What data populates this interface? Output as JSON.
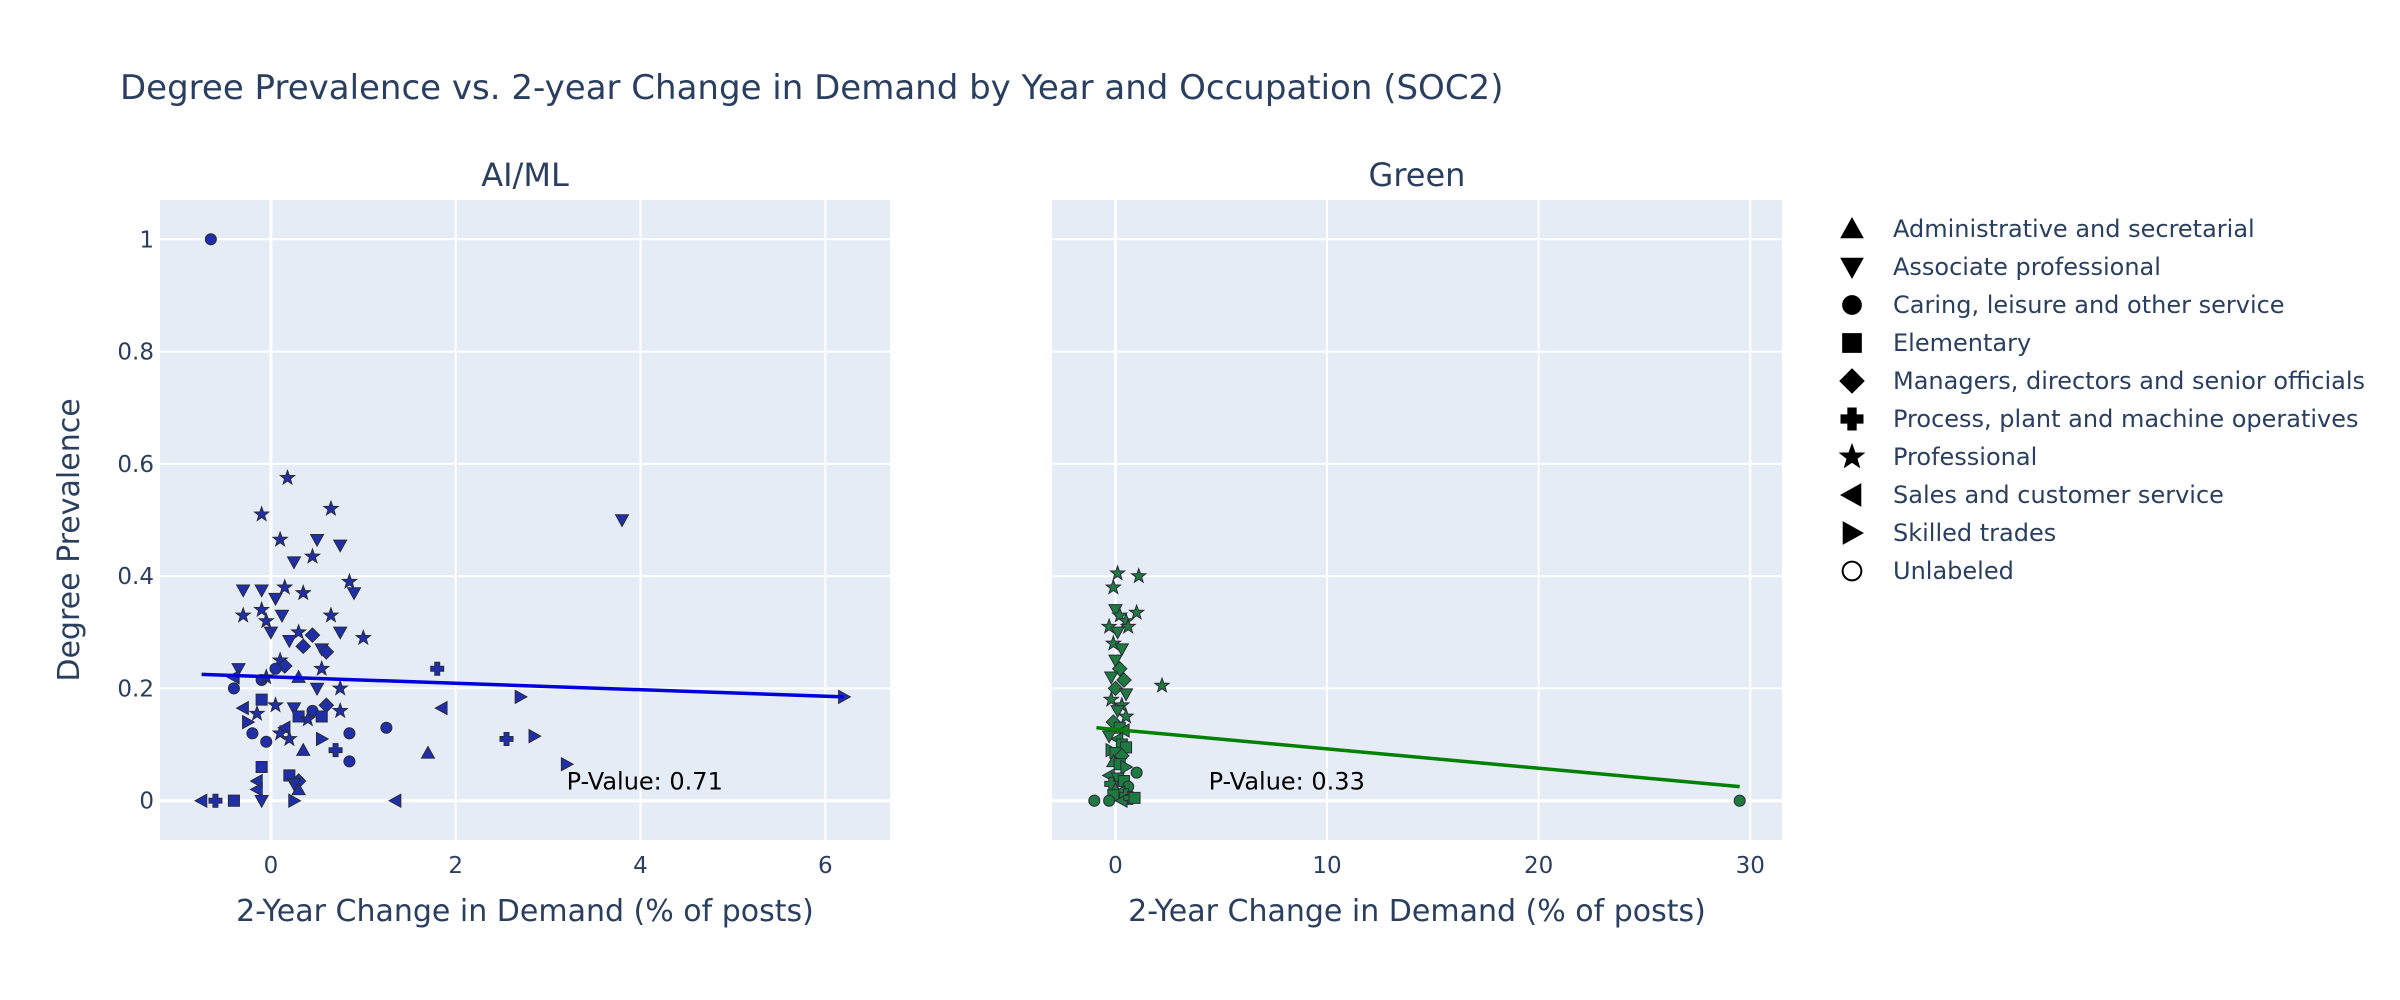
{
  "title": "Degree Prevalence vs. 2-year Change in Demand by Year and Occupation (SOC2)",
  "y_axis_title": "Degree Prevalence",
  "legend": [
    {
      "label": "Administrative and secretarial",
      "icon": "triangle-up-icon"
    },
    {
      "label": "Associate professional",
      "icon": "triangle-down-icon"
    },
    {
      "label": "Caring, leisure and other service",
      "icon": "circle-icon"
    },
    {
      "label": "Elementary",
      "icon": "square-icon"
    },
    {
      "label": "Managers, directors and senior officials",
      "icon": "diamond-icon"
    },
    {
      "label": "Process, plant and machine operatives",
      "icon": "cross-icon"
    },
    {
      "label": "Professional",
      "icon": "star-icon"
    },
    {
      "label": "Sales and customer service",
      "icon": "triangle-left-icon"
    },
    {
      "label": "Skilled trades",
      "icon": "triangle-right-icon"
    },
    {
      "label": "Unlabeled",
      "icon": "circle-open-icon"
    }
  ],
  "chart_data": [
    {
      "type": "scatter",
      "title": "AI/ML",
      "xlabel": "2-Year Change in Demand (% of posts)",
      "ylabel": "Degree Prevalence",
      "xlim": [
        -1.2,
        6.7
      ],
      "ylim": [
        -0.07,
        1.07
      ],
      "xticks": [
        "0",
        "2",
        "4",
        "6"
      ],
      "yticks": [
        "0",
        "0.2",
        "0.4",
        "0.6",
        "0.8",
        "1"
      ],
      "grid": true,
      "color": "#1f2fa8",
      "trend_color": "#0000dd",
      "trendline": [
        [
          -0.75,
          0.225
        ],
        [
          6.2,
          0.185
        ]
      ],
      "annotation": {
        "text": "P-Value: 0.71",
        "x": 3.2,
        "y": 0.02
      },
      "points": [
        {
          "x": -0.65,
          "y": 1.0,
          "cat": "circle"
        },
        {
          "x": -0.75,
          "y": 0.0,
          "cat": "triangle-left"
        },
        {
          "x": -0.6,
          "y": 0.0,
          "cat": "cross"
        },
        {
          "x": -0.4,
          "y": 0.0,
          "cat": "square"
        },
        {
          "x": -0.1,
          "y": 0.0,
          "cat": "triangle-down"
        },
        {
          "x": 0.25,
          "y": 0.0,
          "cat": "triangle-right"
        },
        {
          "x": 1.35,
          "y": 0.0,
          "cat": "triangle-left"
        },
        {
          "x": 3.8,
          "y": 0.5,
          "cat": "triangle-down"
        },
        {
          "x": 6.2,
          "y": 0.185,
          "cat": "triangle-right"
        },
        {
          "x": 0.18,
          "y": 0.575,
          "cat": "star"
        },
        {
          "x": 0.65,
          "y": 0.52,
          "cat": "star"
        },
        {
          "x": -0.1,
          "y": 0.51,
          "cat": "star"
        },
        {
          "x": 0.5,
          "y": 0.465,
          "cat": "triangle-down"
        },
        {
          "x": 0.1,
          "y": 0.465,
          "cat": "star"
        },
        {
          "x": 0.75,
          "y": 0.455,
          "cat": "triangle-down"
        },
        {
          "x": 0.45,
          "y": 0.435,
          "cat": "star"
        },
        {
          "x": 0.25,
          "y": 0.425,
          "cat": "triangle-down"
        },
        {
          "x": 0.85,
          "y": 0.39,
          "cat": "star"
        },
        {
          "x": -0.3,
          "y": 0.375,
          "cat": "triangle-down"
        },
        {
          "x": -0.1,
          "y": 0.375,
          "cat": "triangle-down"
        },
        {
          "x": 0.15,
          "y": 0.38,
          "cat": "star"
        },
        {
          "x": 0.35,
          "y": 0.37,
          "cat": "star"
        },
        {
          "x": 0.05,
          "y": 0.36,
          "cat": "triangle-down"
        },
        {
          "x": 0.9,
          "y": 0.37,
          "cat": "triangle-down"
        },
        {
          "x": -0.1,
          "y": 0.34,
          "cat": "star"
        },
        {
          "x": -0.3,
          "y": 0.33,
          "cat": "star"
        },
        {
          "x": 0.12,
          "y": 0.33,
          "cat": "triangle-down"
        },
        {
          "x": 0.65,
          "y": 0.33,
          "cat": "star"
        },
        {
          "x": -0.05,
          "y": 0.32,
          "cat": "star"
        },
        {
          "x": 0.0,
          "y": 0.3,
          "cat": "triangle-down"
        },
        {
          "x": 0.3,
          "y": 0.3,
          "cat": "star"
        },
        {
          "x": 0.45,
          "y": 0.295,
          "cat": "diamond"
        },
        {
          "x": 0.75,
          "y": 0.3,
          "cat": "triangle-down"
        },
        {
          "x": 1.0,
          "y": 0.29,
          "cat": "star"
        },
        {
          "x": 0.2,
          "y": 0.285,
          "cat": "triangle-down"
        },
        {
          "x": 0.35,
          "y": 0.275,
          "cat": "diamond"
        },
        {
          "x": 0.55,
          "y": 0.27,
          "cat": "triangle-down"
        },
        {
          "x": 0.6,
          "y": 0.265,
          "cat": "diamond"
        },
        {
          "x": 0.1,
          "y": 0.25,
          "cat": "star"
        },
        {
          "x": -0.35,
          "y": 0.235,
          "cat": "triangle-down"
        },
        {
          "x": 0.15,
          "y": 0.24,
          "cat": "diamond"
        },
        {
          "x": 0.05,
          "y": 0.235,
          "cat": "circle"
        },
        {
          "x": 0.55,
          "y": 0.235,
          "cat": "star"
        },
        {
          "x": 1.8,
          "y": 0.235,
          "cat": "cross"
        },
        {
          "x": -0.4,
          "y": 0.22,
          "cat": "triangle-left"
        },
        {
          "x": -0.1,
          "y": 0.215,
          "cat": "circle"
        },
        {
          "x": -0.05,
          "y": 0.22,
          "cat": "star"
        },
        {
          "x": 0.3,
          "y": 0.22,
          "cat": "triangle-up"
        },
        {
          "x": -0.4,
          "y": 0.2,
          "cat": "circle"
        },
        {
          "x": -0.1,
          "y": 0.18,
          "cat": "square"
        },
        {
          "x": 0.5,
          "y": 0.2,
          "cat": "triangle-down"
        },
        {
          "x": 0.75,
          "y": 0.2,
          "cat": "star"
        },
        {
          "x": -0.3,
          "y": 0.165,
          "cat": "triangle-left"
        },
        {
          "x": 0.05,
          "y": 0.17,
          "cat": "star"
        },
        {
          "x": 0.25,
          "y": 0.165,
          "cat": "triangle-down"
        },
        {
          "x": 0.45,
          "y": 0.16,
          "cat": "circle"
        },
        {
          "x": 0.6,
          "y": 0.17,
          "cat": "diamond"
        },
        {
          "x": 0.75,
          "y": 0.16,
          "cat": "star"
        },
        {
          "x": 1.85,
          "y": 0.165,
          "cat": "triangle-left"
        },
        {
          "x": -0.15,
          "y": 0.155,
          "cat": "star"
        },
        {
          "x": 0.3,
          "y": 0.15,
          "cat": "square"
        },
        {
          "x": 0.4,
          "y": 0.145,
          "cat": "star"
        },
        {
          "x": 0.55,
          "y": 0.15,
          "cat": "square"
        },
        {
          "x": -0.25,
          "y": 0.14,
          "cat": "triangle-right"
        },
        {
          "x": 0.15,
          "y": 0.13,
          "cat": "triangle-left"
        },
        {
          "x": 1.25,
          "y": 0.13,
          "cat": "circle"
        },
        {
          "x": -0.2,
          "y": 0.12,
          "cat": "circle"
        },
        {
          "x": 0.1,
          "y": 0.12,
          "cat": "star"
        },
        {
          "x": 0.85,
          "y": 0.12,
          "cat": "circle"
        },
        {
          "x": 0.2,
          "y": 0.11,
          "cat": "star"
        },
        {
          "x": -0.05,
          "y": 0.105,
          "cat": "circle"
        },
        {
          "x": 0.55,
          "y": 0.11,
          "cat": "triangle-right"
        },
        {
          "x": 0.35,
          "y": 0.09,
          "cat": "triangle-up"
        },
        {
          "x": 0.7,
          "y": 0.09,
          "cat": "cross"
        },
        {
          "x": 1.7,
          "y": 0.085,
          "cat": "triangle-up"
        },
        {
          "x": 0.85,
          "y": 0.07,
          "cat": "circle"
        },
        {
          "x": -0.1,
          "y": 0.06,
          "cat": "square"
        },
        {
          "x": 2.55,
          "y": 0.11,
          "cat": "cross"
        },
        {
          "x": 2.7,
          "y": 0.185,
          "cat": "triangle-right"
        },
        {
          "x": 2.85,
          "y": 0.115,
          "cat": "triangle-right"
        },
        {
          "x": 3.2,
          "y": 0.065,
          "cat": "triangle-right"
        },
        {
          "x": 0.2,
          "y": 0.045,
          "cat": "square"
        },
        {
          "x": 0.3,
          "y": 0.035,
          "cat": "diamond"
        },
        {
          "x": 0.25,
          "y": 0.03,
          "cat": "triangle-down"
        },
        {
          "x": -0.15,
          "y": 0.035,
          "cat": "triangle-left"
        },
        {
          "x": 0.3,
          "y": 0.02,
          "cat": "triangle-up"
        },
        {
          "x": -0.15,
          "y": 0.02,
          "cat": "triangle-left"
        }
      ]
    },
    {
      "type": "scatter",
      "title": "Green",
      "xlabel": "2-Year Change in Demand (% of posts)",
      "ylabel": "",
      "xlim": [
        -3,
        31.5
      ],
      "ylim": [
        -0.07,
        1.07
      ],
      "xticks": [
        "0",
        "10",
        "20",
        "30"
      ],
      "yticks": [
        "0",
        "0.2",
        "0.4",
        "0.6",
        "0.8",
        "1"
      ],
      "grid": true,
      "color": "#1e7a3e",
      "trend_color": "#008000",
      "trendline": [
        [
          -0.9,
          0.13
        ],
        [
          29.5,
          0.025
        ]
      ],
      "annotation": {
        "text": "P-Value: 0.33",
        "x": 4.4,
        "y": 0.02
      },
      "points": [
        {
          "x": 29.5,
          "y": 0.0,
          "cat": "circle"
        },
        {
          "x": 0.1,
          "y": 0.405,
          "cat": "star"
        },
        {
          "x": 1.1,
          "y": 0.4,
          "cat": "star"
        },
        {
          "x": -0.1,
          "y": 0.38,
          "cat": "star"
        },
        {
          "x": 0.0,
          "y": 0.34,
          "cat": "triangle-down"
        },
        {
          "x": 1.0,
          "y": 0.335,
          "cat": "star"
        },
        {
          "x": 0.2,
          "y": 0.33,
          "cat": "star"
        },
        {
          "x": 0.5,
          "y": 0.32,
          "cat": "star"
        },
        {
          "x": -0.3,
          "y": 0.31,
          "cat": "star"
        },
        {
          "x": 0.6,
          "y": 0.31,
          "cat": "star"
        },
        {
          "x": 0.1,
          "y": 0.3,
          "cat": "triangle-down"
        },
        {
          "x": -0.1,
          "y": 0.28,
          "cat": "star"
        },
        {
          "x": 0.3,
          "y": 0.27,
          "cat": "triangle-down"
        },
        {
          "x": 0.0,
          "y": 0.25,
          "cat": "triangle-down"
        },
        {
          "x": 0.2,
          "y": 0.235,
          "cat": "diamond"
        },
        {
          "x": -0.2,
          "y": 0.22,
          "cat": "triangle-down"
        },
        {
          "x": 0.4,
          "y": 0.215,
          "cat": "diamond"
        },
        {
          "x": 2.2,
          "y": 0.205,
          "cat": "star"
        },
        {
          "x": 0.0,
          "y": 0.2,
          "cat": "diamond"
        },
        {
          "x": 0.5,
          "y": 0.19,
          "cat": "triangle-down"
        },
        {
          "x": -0.2,
          "y": 0.18,
          "cat": "star"
        },
        {
          "x": 0.3,
          "y": 0.17,
          "cat": "star"
        },
        {
          "x": 0.1,
          "y": 0.16,
          "cat": "triangle-down"
        },
        {
          "x": 0.5,
          "y": 0.15,
          "cat": "star"
        },
        {
          "x": -0.1,
          "y": 0.14,
          "cat": "diamond"
        },
        {
          "x": 0.2,
          "y": 0.13,
          "cat": "square"
        },
        {
          "x": 0.4,
          "y": 0.125,
          "cat": "triangle-left"
        },
        {
          "x": -0.3,
          "y": 0.115,
          "cat": "triangle-down"
        },
        {
          "x": 0.1,
          "y": 0.11,
          "cat": "triangle-left"
        },
        {
          "x": 0.3,
          "y": 0.1,
          "cat": "square"
        },
        {
          "x": 0.5,
          "y": 0.095,
          "cat": "square"
        },
        {
          "x": -0.2,
          "y": 0.09,
          "cat": "triangle-right"
        },
        {
          "x": 0.0,
          "y": 0.085,
          "cat": "square"
        },
        {
          "x": 0.3,
          "y": 0.08,
          "cat": "diamond"
        },
        {
          "x": -0.1,
          "y": 0.07,
          "cat": "triangle-up"
        },
        {
          "x": 0.2,
          "y": 0.065,
          "cat": "square"
        },
        {
          "x": 0.5,
          "y": 0.06,
          "cat": "triangle-right"
        },
        {
          "x": 1.0,
          "y": 0.05,
          "cat": "circle"
        },
        {
          "x": -0.3,
          "y": 0.045,
          "cat": "triangle-left"
        },
        {
          "x": 0.1,
          "y": 0.04,
          "cat": "triangle-down"
        },
        {
          "x": 0.4,
          "y": 0.035,
          "cat": "square"
        },
        {
          "x": -0.2,
          "y": 0.03,
          "cat": "cross"
        },
        {
          "x": 0.6,
          "y": 0.025,
          "cat": "circle"
        },
        {
          "x": 0.0,
          "y": 0.02,
          "cat": "triangle-up"
        },
        {
          "x": 0.2,
          "y": 0.015,
          "cat": "triangle-left"
        },
        {
          "x": 0.5,
          "y": 0.01,
          "cat": "cross"
        },
        {
          "x": -0.1,
          "y": 0.01,
          "cat": "square"
        },
        {
          "x": -1.0,
          "y": 0.0,
          "cat": "circle"
        },
        {
          "x": -0.3,
          "y": 0.0,
          "cat": "circle"
        },
        {
          "x": 0.3,
          "y": 0.0,
          "cat": "triangle-left"
        },
        {
          "x": 0.7,
          "y": 0.005,
          "cat": "cross"
        },
        {
          "x": 0.9,
          "y": 0.005,
          "cat": "square"
        }
      ]
    }
  ]
}
